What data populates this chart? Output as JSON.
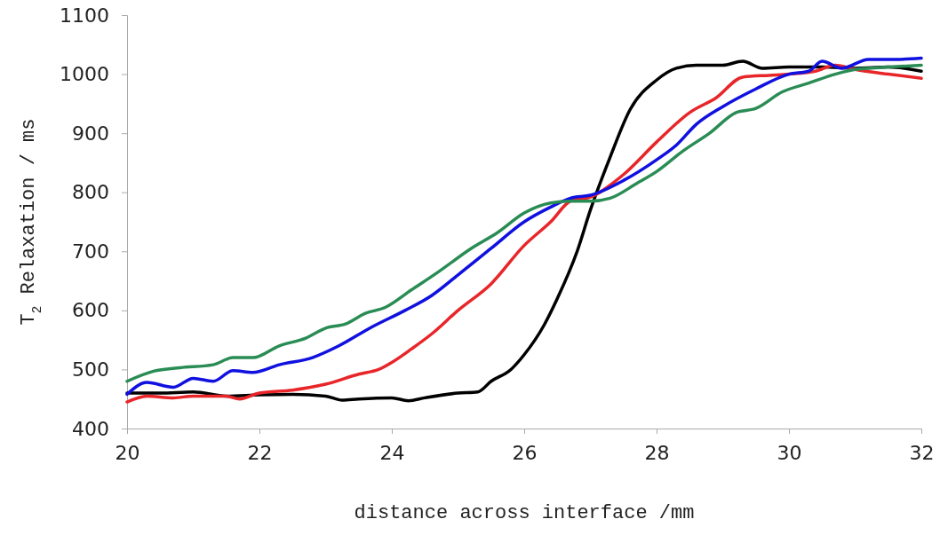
{
  "chart_data": {
    "type": "line",
    "xlabel": "distance across interface /mm",
    "ylabel": "T$_{2}$ Relaxation / ms",
    "xlim": [
      20,
      32
    ],
    "xticks": [
      20,
      22,
      24,
      26,
      28,
      30,
      32
    ],
    "ylim": [
      400,
      1100
    ],
    "yticks": [
      400,
      500,
      600,
      700,
      800,
      900,
      1000,
      1100
    ],
    "grid": false,
    "marker": "none",
    "line_style": "solid",
    "series": [
      {
        "color": "#000000",
        "x": [
          20,
          20.5,
          21,
          21.5,
          22,
          22.5,
          23,
          23.25,
          23.5,
          24,
          24.25,
          24.5,
          25,
          25.3,
          25.5,
          25.8,
          26,
          26.3,
          26.5,
          26.8,
          27,
          27.3,
          27.6,
          28,
          28.3,
          28.6,
          29,
          29.3,
          29.6,
          30,
          30.5,
          31,
          31.5,
          32
        ],
        "values": [
          460,
          460,
          462,
          455,
          457,
          458,
          455,
          448,
          450,
          452,
          447,
          452,
          460,
          462,
          480,
          500,
          525,
          575,
          620,
          700,
          770,
          860,
          940,
          990,
          1010,
          1015,
          1015,
          1022,
          1010,
          1012,
          1012,
          1010,
          1012,
          1005
        ]
      },
      {
        "color": "#e8262a",
        "x": [
          20,
          20.3,
          20.7,
          21,
          21.5,
          21.7,
          22,
          22.5,
          23,
          23.5,
          23.8,
          24,
          24.3,
          24.6,
          25,
          25.5,
          26,
          26.4,
          26.7,
          27,
          27.5,
          28,
          28.5,
          28.9,
          29.3,
          29.7,
          30,
          30.4,
          30.7,
          31,
          31.5,
          32
        ],
        "values": [
          445,
          455,
          452,
          455,
          455,
          450,
          460,
          465,
          475,
          492,
          500,
          512,
          535,
          560,
          600,
          645,
          710,
          750,
          785,
          792,
          830,
          885,
          935,
          960,
          995,
          998,
          1000,
          1005,
          1015,
          1008,
          1000,
          993
        ]
      },
      {
        "color": "#1010e0",
        "x": [
          20,
          20.3,
          20.7,
          21,
          21.3,
          21.6,
          21.9,
          22.3,
          22.8,
          23.2,
          23.7,
          24.2,
          24.6,
          25,
          25.5,
          26,
          26.4,
          26.7,
          27,
          27.5,
          28,
          28.3,
          28.6,
          29,
          29.5,
          30,
          30.3,
          30.5,
          30.8,
          31.2,
          31.6,
          32
        ],
        "values": [
          458,
          478,
          470,
          485,
          480,
          498,
          495,
          508,
          520,
          540,
          572,
          600,
          625,
          660,
          705,
          750,
          775,
          790,
          795,
          820,
          855,
          880,
          915,
          945,
          975,
          1000,
          1005,
          1022,
          1010,
          1025,
          1025,
          1027
        ]
      },
      {
        "color": "#2a8c55",
        "x": [
          20,
          20.4,
          20.8,
          21.3,
          21.6,
          21.9,
          22.3,
          22.7,
          23,
          23.3,
          23.6,
          23.9,
          24.3,
          24.7,
          25.2,
          25.6,
          26,
          26.4,
          26.7,
          27,
          27.3,
          27.7,
          28,
          28.4,
          28.8,
          29.2,
          29.5,
          29.9,
          30.3,
          30.7,
          31,
          31.5,
          32
        ],
        "values": [
          480,
          497,
          503,
          508,
          520,
          520,
          540,
          553,
          570,
          577,
          595,
          605,
          635,
          665,
          705,
          732,
          765,
          782,
          785,
          785,
          790,
          815,
          835,
          870,
          900,
          935,
          942,
          970,
          985,
          1000,
          1008,
          1012,
          1015
        ]
      }
    ]
  }
}
